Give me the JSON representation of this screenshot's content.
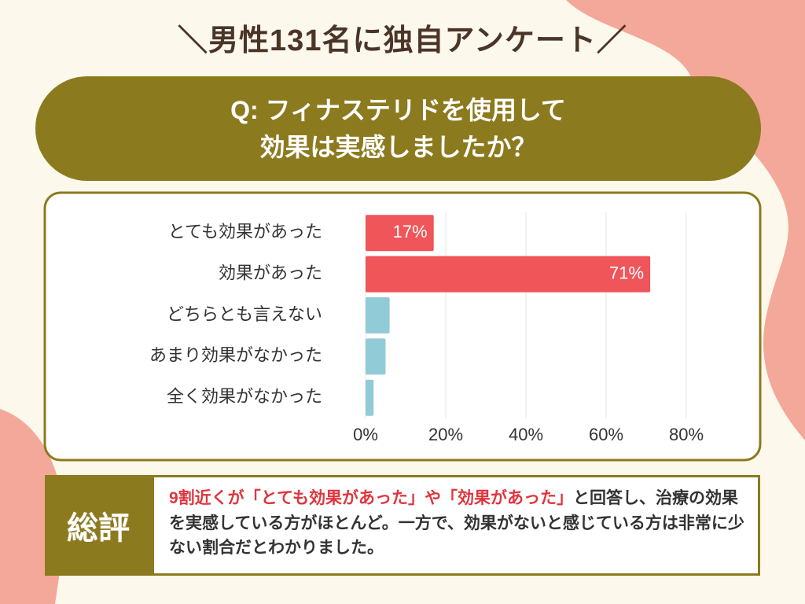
{
  "header": {
    "title": "＼男性131名に独自アンケート／"
  },
  "question": {
    "line1": "Q: フィナステリドを使用して",
    "line2": "効果は実感しましたか？"
  },
  "chart_data": {
    "type": "hbar",
    "categories": [
      "とても効果があった",
      "効果があった",
      "どちらとも言えない",
      "あまり効果がなかった",
      "全く効果がなかった"
    ],
    "values": [
      17,
      71,
      6,
      5,
      2
    ],
    "value_labels": [
      "17%",
      "71%",
      null,
      null,
      null
    ],
    "colors": [
      "#f0555a",
      "#f0555a",
      "#92cbd8",
      "#92cbd8",
      "#92cbd8"
    ],
    "xlim": [
      0,
      80
    ],
    "xticks": [
      {
        "value": 0,
        "label": "0%"
      },
      {
        "value": 20,
        "label": "20%"
      },
      {
        "value": 40,
        "label": "40%"
      },
      {
        "value": 60,
        "label": "60%"
      },
      {
        "value": 80,
        "label": "80%"
      }
    ],
    "grid": true
  },
  "summary": {
    "label": "総評",
    "highlight": "9割近くが「とても効果があった」や「効果があった」",
    "text": "と回答し、治療の効果を実感している方がほとんど。一方で、効果がないと感じている方は非常に少ない割合だとわかりました。"
  }
}
